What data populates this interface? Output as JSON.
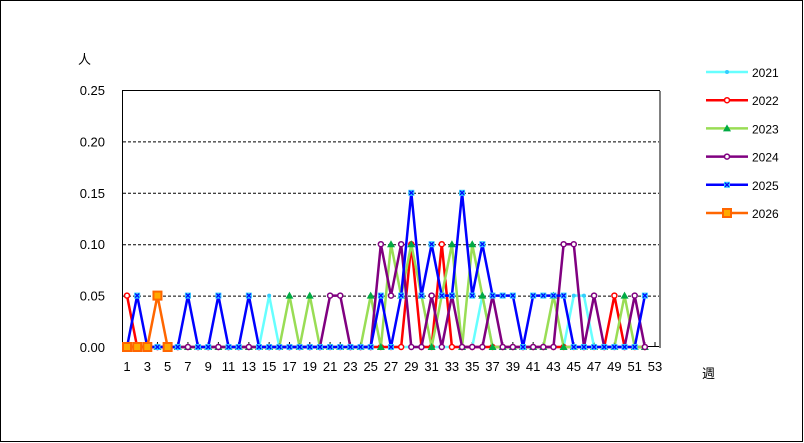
{
  "chart_data": {
    "type": "line",
    "title": "",
    "ylabel": "人",
    "xlabel": "週",
    "ylim": [
      0,
      0.25
    ],
    "yticks": [
      "0.00",
      "0.05",
      "0.10",
      "0.15",
      "0.20",
      "0.25"
    ],
    "xticks": [
      "1",
      "3",
      "5",
      "7",
      "9",
      "11",
      "13",
      "15",
      "17",
      "19",
      "21",
      "23",
      "25",
      "27",
      "29",
      "31",
      "33",
      "35",
      "37",
      "39",
      "41",
      "43",
      "45",
      "47",
      "49",
      "51",
      "53"
    ],
    "x_range": [
      1,
      53
    ],
    "grid": "horizontal dashed",
    "legend_placement": "right",
    "series": [
      {
        "name": "2021",
        "color": "#66FFFF",
        "marker": "circle-small",
        "values": [
          0,
          0,
          0,
          0,
          0,
          0,
          0,
          0,
          0,
          0,
          0,
          0,
          0,
          0,
          0.05,
          0,
          0,
          0,
          0,
          0,
          0,
          0,
          0,
          0,
          0,
          0,
          0,
          0,
          0,
          0,
          0,
          0,
          0,
          0,
          0,
          0.05,
          0,
          0,
          0,
          0,
          0,
          0,
          0,
          0,
          0.05,
          0.05,
          0,
          0,
          0,
          0,
          0,
          0
        ]
      },
      {
        "name": "2022",
        "color": "#FF0000",
        "marker": "circle-open",
        "values": [
          0.05,
          0,
          0,
          0,
          0,
          0,
          0,
          0,
          0,
          0,
          0,
          0,
          0,
          0,
          0,
          0,
          0,
          0,
          0,
          0,
          0,
          0,
          0,
          0,
          0,
          0,
          0,
          0,
          0.1,
          0,
          0,
          0.1,
          0,
          0,
          0,
          0,
          0,
          0,
          0,
          0,
          0,
          0,
          0,
          0,
          0,
          0,
          0,
          0,
          0.05,
          0,
          0,
          0
        ]
      },
      {
        "name": "2023",
        "color": "#99DD55",
        "marker": "triangle",
        "markerColor": "#00AA44",
        "values": [
          0,
          0,
          0,
          0,
          0,
          0,
          0,
          0,
          0,
          0,
          0,
          0,
          0,
          0,
          0,
          0,
          0.05,
          0,
          0.05,
          0,
          0,
          0,
          0,
          0,
          0.05,
          0,
          0.1,
          0.05,
          0.1,
          0.05,
          0,
          0.05,
          0.1,
          0,
          0.1,
          0.05,
          0,
          0,
          0,
          0,
          0,
          0,
          0.05,
          0,
          0,
          0,
          0,
          0,
          0,
          0.05,
          0,
          0
        ]
      },
      {
        "name": "2024",
        "color": "#800080",
        "marker": "circle-open",
        "values": [
          0,
          0,
          0,
          0,
          0,
          0,
          0,
          0,
          0,
          0,
          0,
          0,
          0,
          0,
          0,
          0,
          0,
          0,
          0,
          0,
          0.05,
          0.05,
          0,
          0,
          0,
          0.1,
          0.05,
          0.1,
          0,
          0,
          0.05,
          0,
          0.05,
          0,
          0,
          0,
          0.05,
          0,
          0,
          0,
          0,
          0,
          0,
          0.1,
          0.1,
          0,
          0.05,
          0,
          0,
          0,
          0.05,
          0
        ]
      },
      {
        "name": "2025",
        "color": "#0000FF",
        "marker": "x-square",
        "markerColor": "#33CCFF",
        "values": [
          0,
          0.05,
          0,
          0,
          0,
          0,
          0.05,
          0,
          0,
          0.05,
          0,
          0,
          0.05,
          0,
          0,
          0,
          0,
          0,
          0,
          0,
          0,
          0,
          0,
          0,
          0,
          0.05,
          0,
          0.05,
          0.15,
          0.05,
          0.1,
          0.05,
          0.05,
          0.15,
          0.05,
          0.1,
          0.05,
          0.05,
          0.05,
          0,
          0.05,
          0.05,
          0.05,
          0.05,
          0,
          0,
          0,
          0,
          0,
          0,
          0,
          0.05
        ]
      },
      {
        "name": "2026",
        "color": "#FF6600",
        "marker": "square",
        "markerColor": "#FFAA00",
        "values": [
          0,
          0,
          0,
          0.05,
          0
        ]
      }
    ]
  }
}
